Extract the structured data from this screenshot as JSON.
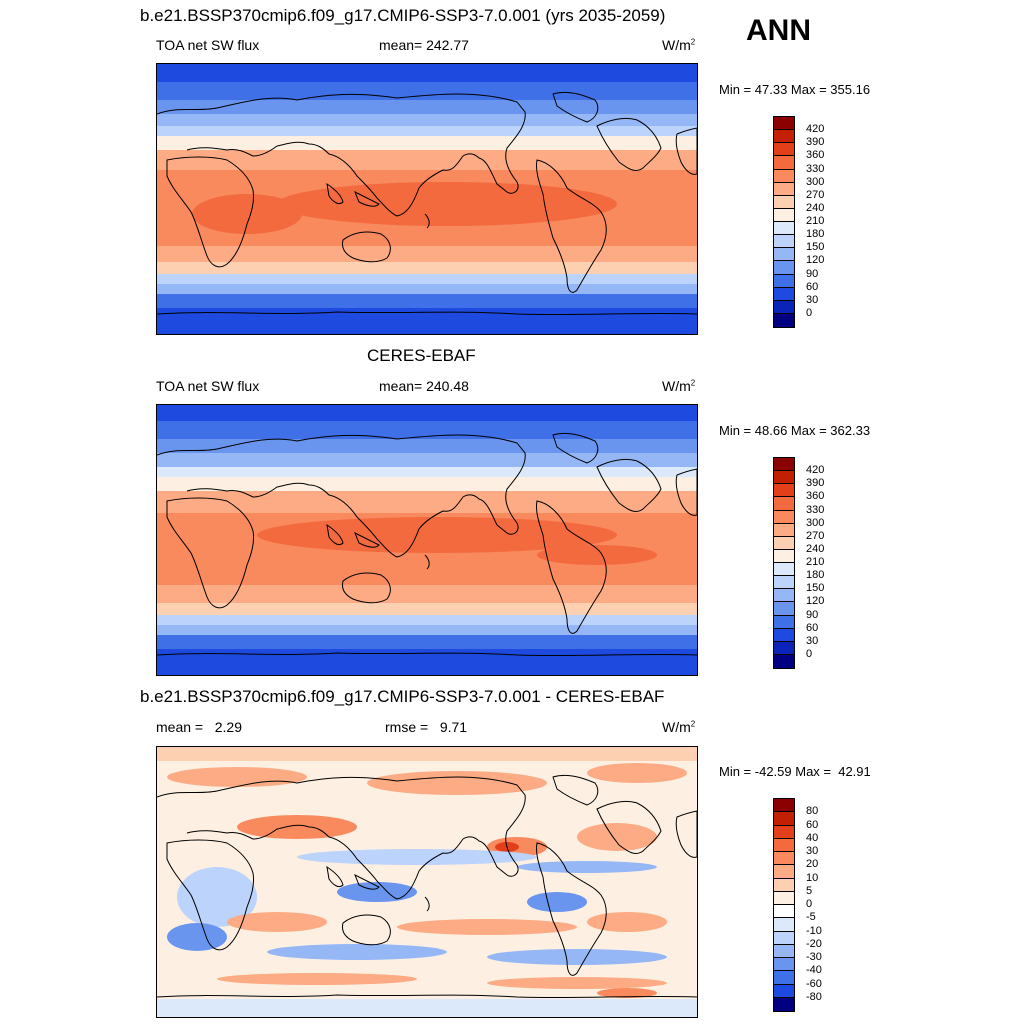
{
  "season": "ANN",
  "panels": [
    {
      "title": "b.e21.BSSP370cmip6.f09_g17.CMIP6-SSP3-7.0.001 (yrs 2035-2059)",
      "left": "TOA net SW flux",
      "center": "mean= 242.77",
      "units_base": "W/m",
      "units_exp": "2",
      "minmax": "Min =  47.33 Max = 355.16",
      "colorbar": {
        "labels": [
          "420",
          "390",
          "360",
          "330",
          "300",
          "270",
          "240",
          "210",
          "180",
          "150",
          "120",
          "90",
          "60",
          "30",
          "0"
        ],
        "colors": [
          "#8b0000",
          "#c32000",
          "#e2401a",
          "#f36a3e",
          "#f98a5e",
          "#fcab84",
          "#fdd0b2",
          "#fdf0e3",
          "#dce9fa",
          "#bcd3fb",
          "#96b7f6",
          "#6a95ef",
          "#3f70e8",
          "#1e4ae0",
          "#0a24b8",
          "#000080"
        ]
      }
    },
    {
      "title": "CERES-EBAF",
      "left": "TOA net SW flux",
      "center": "mean= 240.48",
      "units_base": "W/m",
      "units_exp": "2",
      "minmax": "Min =  48.66 Max = 362.33",
      "colorbar": {
        "labels": [
          "420",
          "390",
          "360",
          "330",
          "300",
          "270",
          "240",
          "210",
          "180",
          "150",
          "120",
          "90",
          "60",
          "30",
          "0"
        ],
        "colors": [
          "#8b0000",
          "#c32000",
          "#e2401a",
          "#f36a3e",
          "#f98a5e",
          "#fcab84",
          "#fdd0b2",
          "#fdf0e3",
          "#dce9fa",
          "#bcd3fb",
          "#96b7f6",
          "#6a95ef",
          "#3f70e8",
          "#1e4ae0",
          "#0a24b8",
          "#000080"
        ]
      }
    },
    {
      "title": "b.e21.BSSP370cmip6.f09_g17.CMIP6-SSP3-7.0.001 - CERES-EBAF",
      "left": "mean =   2.29",
      "center": "rmse =   9.71",
      "units_base": "W/m",
      "units_exp": "2",
      "minmax": "Min = -42.59 Max =  42.91",
      "colorbar": {
        "labels": [
          "80",
          "60",
          "40",
          "30",
          "20",
          "10",
          "5",
          "0",
          "-5",
          "-10",
          "-20",
          "-30",
          "-40",
          "-60",
          "-80"
        ],
        "colors": [
          "#8b0000",
          "#c32000",
          "#e2401a",
          "#f36a3e",
          "#f98a5e",
          "#fcab84",
          "#fdd0b2",
          "#fdf0e3",
          "#ffffff",
          "#dce9fa",
          "#bcd3fb",
          "#96b7f6",
          "#6a95ef",
          "#3f70e8",
          "#1e4ae0",
          "#000080"
        ]
      }
    }
  ]
}
